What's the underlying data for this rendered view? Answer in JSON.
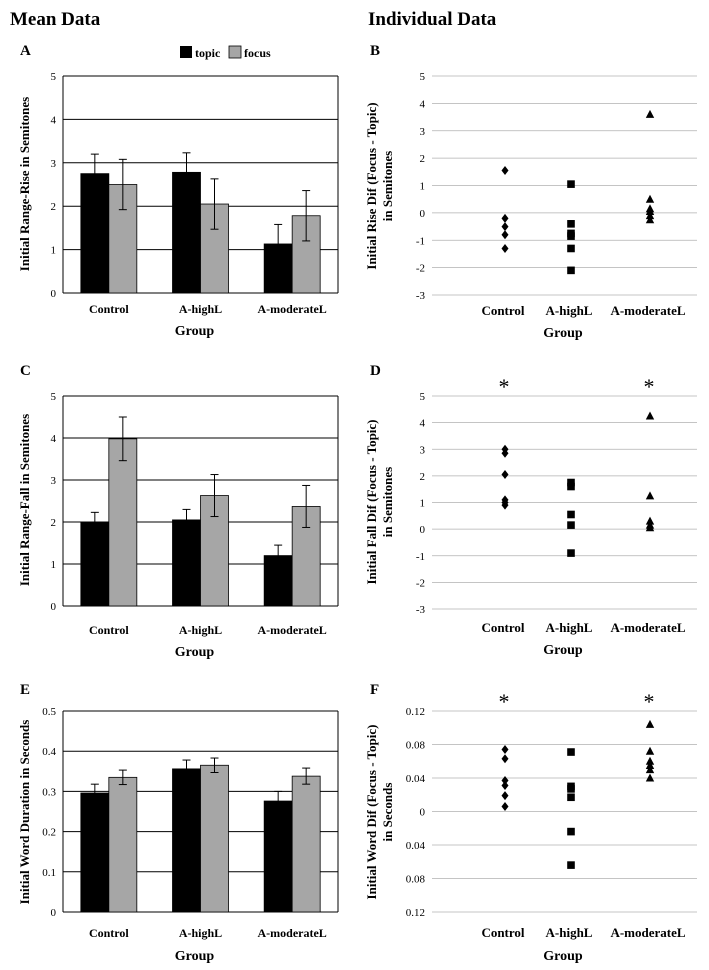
{
  "headers": {
    "left": "Mean Data",
    "right": "Individual Data"
  },
  "legend": {
    "topic": "topic",
    "focus": "focus"
  },
  "colors": {
    "topic": "#000000",
    "focus": "#a6a6a6",
    "grid": "#000000",
    "grid_light": "#b0b0b0"
  },
  "chart_data": [
    {
      "panel": "A",
      "type": "bar",
      "categories": [
        "Control",
        "A-highL",
        "A-moderateL"
      ],
      "series": [
        {
          "name": "topic",
          "values": [
            2.75,
            2.78,
            1.13
          ],
          "errors": [
            0.45,
            0.45,
            0.45
          ]
        },
        {
          "name": "focus",
          "values": [
            2.5,
            2.05,
            1.78
          ],
          "errors": [
            0.58,
            0.58,
            0.58
          ]
        }
      ],
      "ylabel": "Initial Range-Rise in Semitones",
      "xlabel": "Group",
      "ylim": [
        0,
        5
      ],
      "yticks": [
        "0",
        "1",
        "2",
        "3",
        "4",
        "5"
      ]
    },
    {
      "panel": "B",
      "type": "scatter",
      "categories": [
        "Control",
        "A-highL",
        "A-moderateL"
      ],
      "markers": [
        "diamond",
        "square",
        "triangle"
      ],
      "points": [
        [
          1.55,
          -0.2,
          -0.5,
          -0.8,
          -1.3
        ],
        [
          1.05,
          -0.4,
          -0.75,
          -0.85,
          -1.3,
          -2.1
        ],
        [
          3.6,
          0.5,
          0.15,
          0.05,
          -0.1,
          -0.25
        ]
      ],
      "ylabel": [
        "Initial Rise Dif (Focus - Topic)",
        "in Semitones"
      ],
      "xlabel": "Group",
      "ylim": [
        -3,
        5
      ],
      "yticks": [
        "5",
        "4",
        "3",
        "2",
        "1",
        "0",
        "-1",
        "-2",
        "-3"
      ],
      "annotations": [
        "",
        "",
        ""
      ]
    },
    {
      "panel": "C",
      "type": "bar",
      "categories": [
        "Control",
        "A-highL",
        "A-moderateL"
      ],
      "series": [
        {
          "name": "topic",
          "values": [
            1.98,
            2.05,
            1.2
          ],
          "errors": [
            0.25,
            0.25,
            0.25
          ]
        },
        {
          "name": "focus",
          "values": [
            3.98,
            2.63,
            2.37
          ],
          "errors": [
            0.52,
            0.5,
            0.5
          ]
        }
      ],
      "ylabel": "Initial Range-Fall in Semitones",
      "xlabel": "Group",
      "ylim": [
        0,
        5
      ],
      "yticks": [
        "0",
        "1",
        "2",
        "3",
        "4",
        "5"
      ]
    },
    {
      "panel": "D",
      "type": "scatter",
      "categories": [
        "Control",
        "A-highL",
        "A-moderateL"
      ],
      "markers": [
        "diamond",
        "square",
        "triangle"
      ],
      "points": [
        [
          3.0,
          2.85,
          2.05,
          1.1,
          1.0,
          0.9
        ],
        [
          1.75,
          1.6,
          0.55,
          0.15,
          -0.9
        ],
        [
          4.25,
          1.25,
          0.3,
          0.15,
          0.05
        ]
      ],
      "ylabel": [
        "Initial Fall Dif (Focus - Topic)",
        "in Semitones"
      ],
      "xlabel": "Group",
      "ylim": [
        -3,
        5
      ],
      "yticks": [
        "5",
        "4",
        "3",
        "2",
        "1",
        "0",
        "-1",
        "-2",
        "-3"
      ],
      "annotations": [
        "*",
        "",
        "*"
      ]
    },
    {
      "panel": "E",
      "type": "bar",
      "categories": [
        "Control",
        "A-highL",
        "A-moderateL"
      ],
      "series": [
        {
          "name": "topic",
          "values": [
            0.296,
            0.356,
            0.276
          ],
          "errors": [
            0.022,
            0.022,
            0.024
          ]
        },
        {
          "name": "focus",
          "values": [
            0.335,
            0.365,
            0.338
          ],
          "errors": [
            0.018,
            0.018,
            0.02
          ]
        }
      ],
      "ylabel": "Initial Word Duration in Seconds",
      "xlabel": "Group",
      "ylim": [
        0,
        0.5
      ],
      "yticks": [
        "0",
        "0.1",
        "0.2",
        "0.3",
        "0.4",
        "0.5"
      ]
    },
    {
      "panel": "F",
      "type": "scatter",
      "categories": [
        "Control",
        "A-highL",
        "A-moderateL"
      ],
      "markers": [
        "diamond",
        "square",
        "triangle"
      ],
      "points": [
        [
          0.074,
          0.063,
          0.037,
          0.031,
          0.019,
          0.006
        ],
        [
          0.071,
          0.03,
          0.027,
          0.017,
          -0.024,
          -0.064
        ],
        [
          0.104,
          0.072,
          0.06,
          0.055,
          0.05,
          0.04
        ]
      ],
      "ylabel": [
        "Initial Word Dif (Focus - Topic)",
        "in Seconds"
      ],
      "xlabel": "Group",
      "ylim": [
        -0.12,
        0.12
      ],
      "yticks": [
        "0.12",
        "0.08",
        "0.04",
        "0",
        "0.04",
        "0.08",
        "0.12"
      ],
      "annotations": [
        "*",
        "",
        "*"
      ]
    }
  ]
}
